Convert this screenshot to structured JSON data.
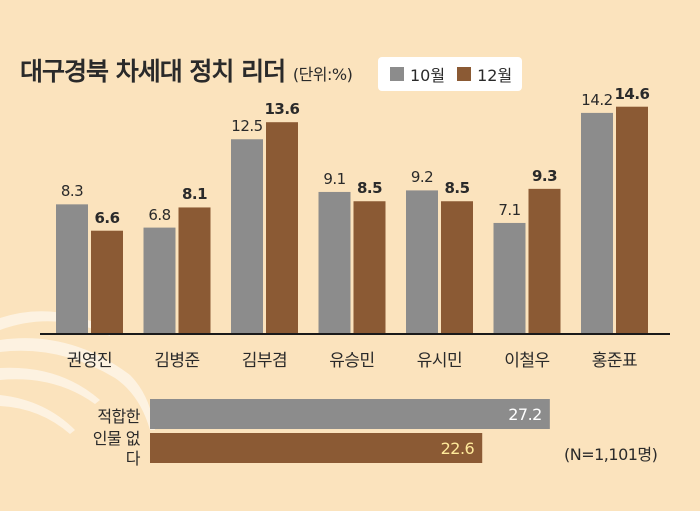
{
  "title": "대구경북 차세대 정치 리더",
  "unit": "(단위:%)",
  "colors": {
    "oct": "#8c8c8c",
    "dec": "#8b5a34",
    "axis": "#1a1a1a",
    "bg": "#fbe3bd"
  },
  "chart_data": [
    {
      "type": "bar",
      "categories": [
        "권영진",
        "김병준",
        "김부겸",
        "유승민",
        "유시민",
        "이철우",
        "홍준표"
      ],
      "series": [
        {
          "name": "10월",
          "values": [
            8.3,
            6.8,
            12.5,
            9.1,
            9.2,
            7.1,
            14.2
          ],
          "labels": [
            "8.3",
            "6.8",
            "12.5",
            "9.1",
            "9.2",
            "7.1",
            "14.2"
          ]
        },
        {
          "name": "12월",
          "values": [
            6.6,
            8.1,
            13.6,
            8.5,
            8.5,
            9.3,
            14.6
          ],
          "labels": [
            "6.6",
            "8.1",
            "13.6",
            "8.5",
            "8.5",
            "9.3",
            "14.6"
          ]
        }
      ],
      "ylim": [
        0,
        16
      ]
    },
    {
      "type": "bar",
      "orientation": "horizontal",
      "category": [
        "적합한",
        "인물 없다"
      ],
      "series": [
        {
          "name": "10월",
          "values": [
            27.2
          ],
          "labels": [
            "27.2"
          ]
        },
        {
          "name": "12월",
          "values": [
            22.6
          ],
          "labels": [
            "22.6"
          ]
        }
      ],
      "xlim": [
        0,
        30
      ]
    }
  ],
  "note": "(N=1,101명)"
}
